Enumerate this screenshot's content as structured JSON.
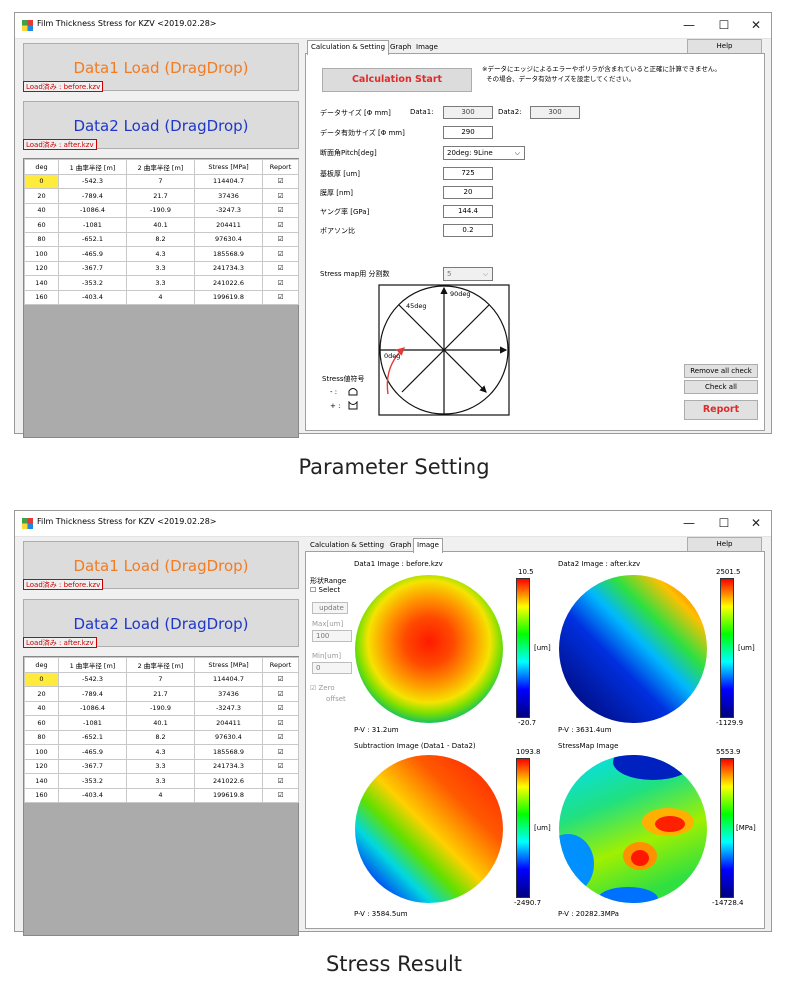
{
  "window": {
    "title": "Film Thickness Stress for KZV <2019.02.28>",
    "minimize": "—",
    "maximize": "☐",
    "close": "✕"
  },
  "load": {
    "data1_label": "Data1 Load (DragDrop)",
    "data1_file": "Load済み : before.kzv",
    "data2_label": "Data2 Load (DragDrop)",
    "data2_file": "Load済み : after.kzv"
  },
  "grid": {
    "columns": [
      "deg",
      "1 曲率半径 [m]",
      "2 曲率半径 [m]",
      "Stress [MPa]",
      "Report"
    ],
    "rows": [
      [
        "0",
        "-542.3",
        "7",
        "114404.7",
        "☑"
      ],
      [
        "20",
        "-789.4",
        "21.7",
        "37436",
        "☑"
      ],
      [
        "40",
        "-1086.4",
        "-190.9",
        "-3247.3",
        "☑"
      ],
      [
        "60",
        "-1081",
        "40.1",
        "204411",
        "☑"
      ],
      [
        "80",
        "-652.1",
        "8.2",
        "97630.4",
        "☑"
      ],
      [
        "100",
        "-465.9",
        "4.3",
        "185568.9",
        "☑"
      ],
      [
        "120",
        "-367.7",
        "3.3",
        "241734.3",
        "☑"
      ],
      [
        "140",
        "-353.2",
        "3.3",
        "241022.6",
        "☑"
      ],
      [
        "160",
        "-403.4",
        "4",
        "199619.8",
        "☑"
      ]
    ]
  },
  "tabs": [
    "Calculation & Setting",
    "Graph",
    "Image"
  ],
  "help_label": "Help",
  "settings": {
    "calc_button": "Calculation Start",
    "note": "※データにエッジによるエラーやポリラが含まれていると正確に計算できません。\n  その場合、データ有効サイズを設定してください。",
    "data_size_label": "データサイズ [Φ mm]",
    "data1_label": "Data1:",
    "data1_value": "300",
    "data2_label": "Data2:",
    "data2_value": "300",
    "valid_size_label": "データ有効サイズ [Φ mm]",
    "valid_size_value": "290",
    "pitch_label": "断面角Pitch[deg]",
    "pitch_value": "20deg:  9Line",
    "substrate_label": "基板厚 [um]",
    "substrate_value": "725",
    "film_label": "膜厚 [nm]",
    "film_value": "20",
    "young_label": "ヤング率 [GPa]",
    "young_value": "144.4",
    "poisson_label": "ポアソン比",
    "poisson_value": "0.2",
    "stressmap_label": "Stress map用 分割数",
    "stressmap_value": "5",
    "diagram_90": "90deg",
    "diagram_45": "45deg",
    "diagram_0": "0deg",
    "sign_title": "Stress値符号",
    "sign_minus": "- :",
    "sign_plus": "+ :",
    "remove_all": "Remove all check",
    "check_all": "Check all",
    "report": "Report"
  },
  "image_tab": {
    "shape_range": "形状Range",
    "select": "Select",
    "update": "update",
    "max_label": "Max[um]",
    "max_value": "100",
    "min_label": "Min[um]",
    "min_value": "0",
    "zero_label": "Zero",
    "offset_label": "offset",
    "maps": [
      {
        "title": "Data1 Image : before.kzv",
        "max": "10.5",
        "min": "-20.7",
        "unit": "[um]",
        "pv": "P-V : 31.2um"
      },
      {
        "title": "Data2 Image : after.kzv",
        "max": "2501.5",
        "min": "-1129.9",
        "unit": "[um]",
        "pv": "P-V : 3631.4um"
      },
      {
        "title": "Subtraction Image (Data1 - Data2)",
        "max": "1093.8",
        "min": "-2490.7",
        "unit": "[um]",
        "pv": "P-V : 3584.5um"
      },
      {
        "title": "StressMap Image",
        "max": "5553.9",
        "min": "-14728.4",
        "unit": "[MPa]",
        "pv": "P-V : 20282.3MPa"
      }
    ]
  },
  "captions": {
    "top": "Parameter Setting",
    "bottom": "Stress Result"
  },
  "colors": {
    "load1": "#f47b20",
    "load2": "#1f37c9",
    "accent_red": "#e02b2b",
    "highlight": "#ffeb3b"
  }
}
